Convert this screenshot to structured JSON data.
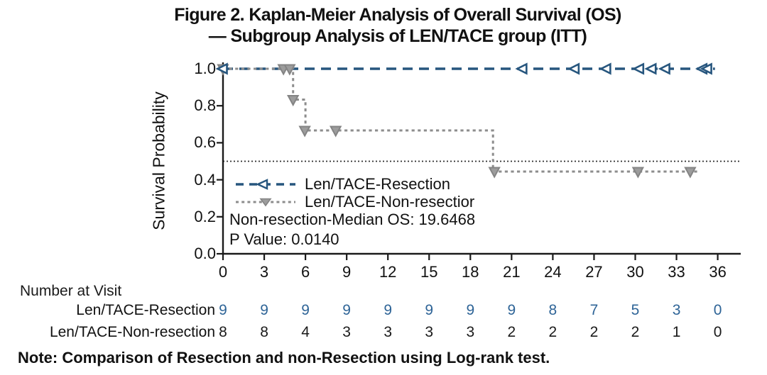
{
  "colors": {
    "blue_line": "#27567E",
    "blue_text": "#2E6497",
    "gray_line": "#8D8D8D",
    "axis": "#1a1a1a",
    "reference": "#2e2e2e"
  },
  "chart_data": {
    "type": "line",
    "subtype": "kaplan-meier-step",
    "title_line1": "Figure 2. Kaplan-Meier Analysis of Overall Survival (OS)",
    "title_line2": "— Subgroup Analysis of LEN/TACE group (ITT)",
    "xlabel": "",
    "ylabel": "Survival Probability",
    "xlim": [
      0,
      36
    ],
    "ylim": [
      0.0,
      1.0
    ],
    "xticks": [
      0,
      3,
      6,
      9,
      12,
      15,
      18,
      21,
      24,
      27,
      30,
      33,
      36
    ],
    "yticks": [
      0.0,
      0.2,
      0.4,
      0.6,
      0.8,
      1.0
    ],
    "grid": false,
    "legend_position": "inside-left",
    "reference_line_y": 0.5,
    "series": [
      {
        "name": "Len/TACE-Resection",
        "color": "#27567E",
        "line_style": "dashed",
        "marker": "left-triangle-open",
        "steps": [
          [
            0,
            1.0
          ],
          [
            35.8,
            1.0
          ]
        ],
        "censor_marks_x": [
          0,
          21.8,
          25.6,
          27.9,
          30.3,
          31.2,
          32.2,
          34.9,
          35.25
        ],
        "censor_marks_y": 1.0
      },
      {
        "name": "Len/TACE-Non-resection",
        "color": "#8D8D8D",
        "line_style": "dotted",
        "marker": "down-triangle-filled",
        "steps": [
          [
            0,
            1.0
          ],
          [
            5.1,
            1.0
          ],
          [
            5.1,
            0.8333
          ],
          [
            6.0,
            0.8333
          ],
          [
            6.0,
            0.6667
          ],
          [
            19.65,
            0.6667
          ],
          [
            19.65,
            0.4444
          ],
          [
            34.5,
            0.4444
          ]
        ],
        "markers": [
          [
            0,
            1.0
          ],
          [
            4.4,
            1.0
          ],
          [
            4.85,
            1.0
          ],
          [
            5.1,
            0.8333
          ],
          [
            5.95,
            0.6667
          ],
          [
            8.2,
            0.6667
          ],
          [
            19.75,
            0.4444
          ],
          [
            30.2,
            0.4444
          ],
          [
            34.0,
            0.4444
          ]
        ]
      }
    ],
    "legend": [
      "Len/TACE-Resection",
      "Len/TACE-Non-resectior"
    ],
    "annotations": [
      "Non-resection-Median OS: 19.6468",
      "P Value: 0.0140"
    ],
    "number_at_visit": {
      "title": "Number at Visit",
      "times": [
        0,
        3,
        6,
        9,
        12,
        15,
        18,
        21,
        24,
        27,
        30,
        33,
        36
      ],
      "rows": [
        {
          "label": "Len/TACE-Resection",
          "color": "#2E6497",
          "values": [
            9,
            9,
            9,
            9,
            9,
            9,
            9,
            9,
            8,
            7,
            5,
            3,
            0
          ]
        },
        {
          "label": "Len/TACE-Non-resection",
          "color": "#1a1a1a",
          "values": [
            8,
            8,
            4,
            3,
            3,
            3,
            3,
            2,
            2,
            2,
            2,
            1,
            0
          ]
        }
      ]
    },
    "note": "Note: Comparison of Resection and non-Resection using Log-rank test."
  }
}
